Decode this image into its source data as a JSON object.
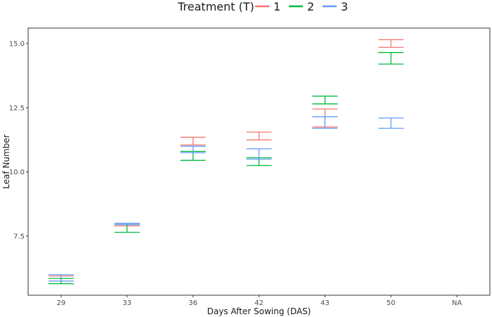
{
  "legend": {
    "title": "Treatment (T)",
    "entries": [
      {
        "label": "1",
        "color": "#F8766D"
      },
      {
        "label": "2",
        "color": "#00BA38"
      },
      {
        "label": "3",
        "color": "#619CFF"
      }
    ],
    "placement": "top"
  },
  "chart_data": {
    "type": "errorbar",
    "title": "",
    "xlabel": "Days After Sowing (DAS)",
    "ylabel": "Leaf Number",
    "categories": [
      "29",
      "33",
      "36",
      "42",
      "43",
      "50",
      "NA"
    ],
    "y_ticks": [
      7.5,
      10.0,
      12.5,
      15.0
    ],
    "y_tick_labels": [
      "7.5",
      "10.0",
      "12.5",
      "15.0"
    ],
    "ylim": [
      5.2,
      15.6
    ],
    "grid": false,
    "series": [
      {
        "name": "1",
        "color": "#F8766D",
        "bars": [
          {
            "x": "29",
            "low": 5.75,
            "high": 5.95
          },
          {
            "x": "33",
            "low": 7.9,
            "high": 8.0
          },
          {
            "x": "36",
            "low": 11.05,
            "high": 11.35
          },
          {
            "x": "42",
            "low": 11.25,
            "high": 11.55
          },
          {
            "x": "43",
            "low": 11.75,
            "high": 12.45
          },
          {
            "x": "50",
            "low": 14.85,
            "high": 15.15
          }
        ]
      },
      {
        "name": "2",
        "color": "#00BA38",
        "bars": [
          {
            "x": "29",
            "low": 5.65,
            "high": 5.85
          },
          {
            "x": "33",
            "low": 7.65,
            "high": 7.95
          },
          {
            "x": "36",
            "low": 10.45,
            "high": 10.8
          },
          {
            "x": "42",
            "low": 10.25,
            "high": 10.55
          },
          {
            "x": "43",
            "low": 12.65,
            "high": 12.95
          },
          {
            "x": "50",
            "low": 14.2,
            "high": 14.65
          }
        ]
      },
      {
        "name": "3",
        "color": "#619CFF",
        "bars": [
          {
            "x": "29",
            "low": 5.75,
            "high": 6.0
          },
          {
            "x": "33",
            "low": 7.95,
            "high": 8.0
          },
          {
            "x": "36",
            "low": 10.75,
            "high": 11.0
          },
          {
            "x": "42",
            "low": 10.5,
            "high": 10.9
          },
          {
            "x": "43",
            "low": 11.7,
            "high": 12.15
          },
          {
            "x": "50",
            "low": 11.7,
            "high": 12.1
          }
        ]
      }
    ]
  }
}
